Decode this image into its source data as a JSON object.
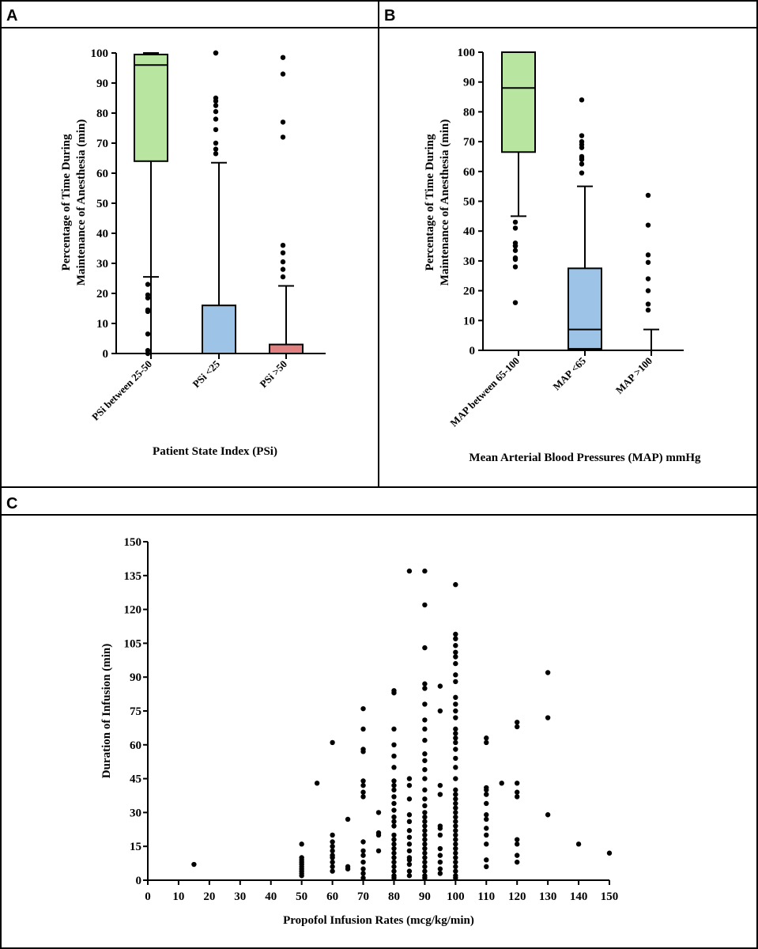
{
  "panels": [
    {
      "letter": "A"
    },
    {
      "letter": "B"
    },
    {
      "letter": "C"
    }
  ],
  "chart_data": [
    {
      "type": "box",
      "panel": "A",
      "xlabel": "Patient State Index (PSi)",
      "ylabel_lines": [
        "Percentage of Time During",
        "Maintenance of Anesthesia (min)"
      ],
      "ylim": [
        0,
        100
      ],
      "yticks": [
        0,
        10,
        20,
        30,
        40,
        50,
        60,
        70,
        80,
        90,
        100
      ],
      "categories": [
        "PSi between 25-50",
        "PSi <25",
        "PSi >50"
      ],
      "colors": [
        "#b8e6a0",
        "#9dc3e6",
        "#e08080"
      ],
      "boxes": [
        {
          "whisker_low": 0,
          "q1": 64,
          "median": 96,
          "q3": 99.5,
          "whisker_high": 100,
          "lower_cap": 25.5,
          "outliers": [
            0,
            1,
            6.5,
            14,
            14.5,
            18.5,
            19.5,
            23
          ]
        },
        {
          "whisker_low": 0,
          "q1": 0,
          "median": 0,
          "q3": 16,
          "whisker_high": 63.5,
          "outliers": [
            66.5,
            68,
            70,
            74.5,
            78,
            80.5,
            82.5,
            84,
            85,
            100,
            100
          ]
        },
        {
          "whisker_low": 0,
          "q1": 0,
          "median": 0,
          "q3": 3,
          "whisker_high": 22.5,
          "outliers": [
            25.5,
            28,
            30.5,
            33.5,
            36,
            72,
            77,
            93,
            98.5
          ]
        }
      ]
    },
    {
      "type": "box",
      "panel": "B",
      "xlabel": "Mean Arterial Blood Pressures (MAP) mmHg",
      "ylabel_lines": [
        "Percentage of Time During",
        "Maintenance of Anesthesia (min)"
      ],
      "ylim": [
        0,
        100
      ],
      "yticks": [
        0,
        10,
        20,
        30,
        40,
        50,
        60,
        70,
        80,
        90,
        100
      ],
      "categories": [
        "MAP between 65-100",
        "MAP <65",
        "MAP >100"
      ],
      "colors": [
        "#b8e6a0",
        "#9dc3e6",
        "#e08080"
      ],
      "boxes": [
        {
          "whisker_low": 45,
          "q1": 66.5,
          "median": 88,
          "q3": 100,
          "whisker_high": 100,
          "lower_cap": 45,
          "outliers": [
            16,
            28,
            30.5,
            31,
            33.5,
            35,
            35,
            36,
            41,
            43
          ]
        },
        {
          "whisker_low": 0,
          "q1": 0.5,
          "median": 7,
          "q3": 27.5,
          "whisker_high": 55,
          "outliers": [
            59.5,
            62.5,
            64,
            64.5,
            65,
            68,
            69,
            70,
            72,
            84
          ]
        },
        {
          "whisker_low": 0,
          "q1": 0,
          "median": 0,
          "q3": 0,
          "whisker_high": 7,
          "outliers": [
            13.5,
            15.5,
            20,
            24,
            29.5,
            32,
            42,
            52
          ]
        }
      ]
    },
    {
      "type": "scatter",
      "panel": "C",
      "xlabel": "Propofol Infusion Rates (mcg/kg/min)",
      "ylabel": "Duration of Infusion (min)",
      "xlim": [
        0,
        150
      ],
      "ylim": [
        0,
        150
      ],
      "xticks": [
        0,
        10,
        20,
        30,
        40,
        50,
        60,
        70,
        80,
        90,
        100,
        110,
        120,
        130,
        140,
        150
      ],
      "yticks": [
        0,
        15,
        30,
        45,
        60,
        75,
        90,
        105,
        120,
        135,
        150
      ],
      "groups": [
        {
          "x": 15,
          "y": [
            7
          ]
        },
        {
          "x": 50,
          "y": [
            2,
            3,
            4,
            5,
            6,
            7,
            8,
            9,
            10,
            16
          ]
        },
        {
          "x": 55,
          "y": [
            43
          ]
        },
        {
          "x": 60,
          "y": [
            4,
            6,
            8,
            10,
            11,
            13,
            15,
            17,
            20,
            61
          ]
        },
        {
          "x": 65,
          "y": [
            5,
            6,
            27
          ]
        },
        {
          "x": 70,
          "y": [
            1,
            3,
            5,
            8,
            11,
            13,
            17,
            37,
            39,
            42,
            44,
            57,
            58,
            67,
            76
          ]
        },
        {
          "x": 75,
          "y": [
            13,
            20,
            21,
            30
          ]
        },
        {
          "x": 80,
          "y": [
            1,
            2,
            4,
            6,
            8,
            10,
            12,
            14,
            16,
            18,
            20,
            24,
            26,
            28,
            31,
            34,
            37,
            40,
            42,
            44,
            50,
            55,
            60,
            67,
            83,
            84
          ]
        },
        {
          "x": 85,
          "y": [
            2,
            4,
            7,
            9,
            10,
            13,
            16,
            19,
            22,
            26,
            29,
            36,
            42,
            45,
            137
          ]
        },
        {
          "x": 90,
          "y": [
            1,
            2,
            4,
            6,
            8,
            10,
            12,
            14,
            16,
            18,
            20,
            22,
            24,
            26,
            28,
            30,
            33,
            36,
            40,
            45,
            49,
            53,
            56,
            62,
            67,
            71,
            78,
            85,
            87,
            103,
            122,
            137
          ]
        },
        {
          "x": 95,
          "y": [
            3,
            5,
            8,
            11,
            14,
            20,
            23,
            24,
            38,
            42,
            75,
            86
          ]
        },
        {
          "x": 100,
          "y": [
            1,
            2,
            4,
            6,
            8,
            10,
            12,
            14,
            16,
            18,
            20,
            22,
            24,
            26,
            28,
            30,
            32,
            34,
            36,
            38,
            40,
            45,
            50,
            54,
            58,
            61,
            63,
            65,
            67,
            72,
            75,
            78,
            81,
            88,
            91,
            96,
            99,
            101,
            104,
            107,
            109,
            131
          ]
        },
        {
          "x": 110,
          "y": [
            6,
            9,
            16,
            20,
            23,
            27,
            29,
            34,
            38,
            40,
            41,
            61,
            63
          ]
        },
        {
          "x": 115,
          "y": [
            43
          ]
        },
        {
          "x": 120,
          "y": [
            8,
            11,
            16,
            18,
            37,
            39,
            43,
            68,
            70
          ]
        },
        {
          "x": 130,
          "y": [
            29,
            72,
            92
          ]
        },
        {
          "x": 140,
          "y": [
            16
          ]
        },
        {
          "x": 150,
          "y": [
            12
          ]
        }
      ]
    }
  ]
}
